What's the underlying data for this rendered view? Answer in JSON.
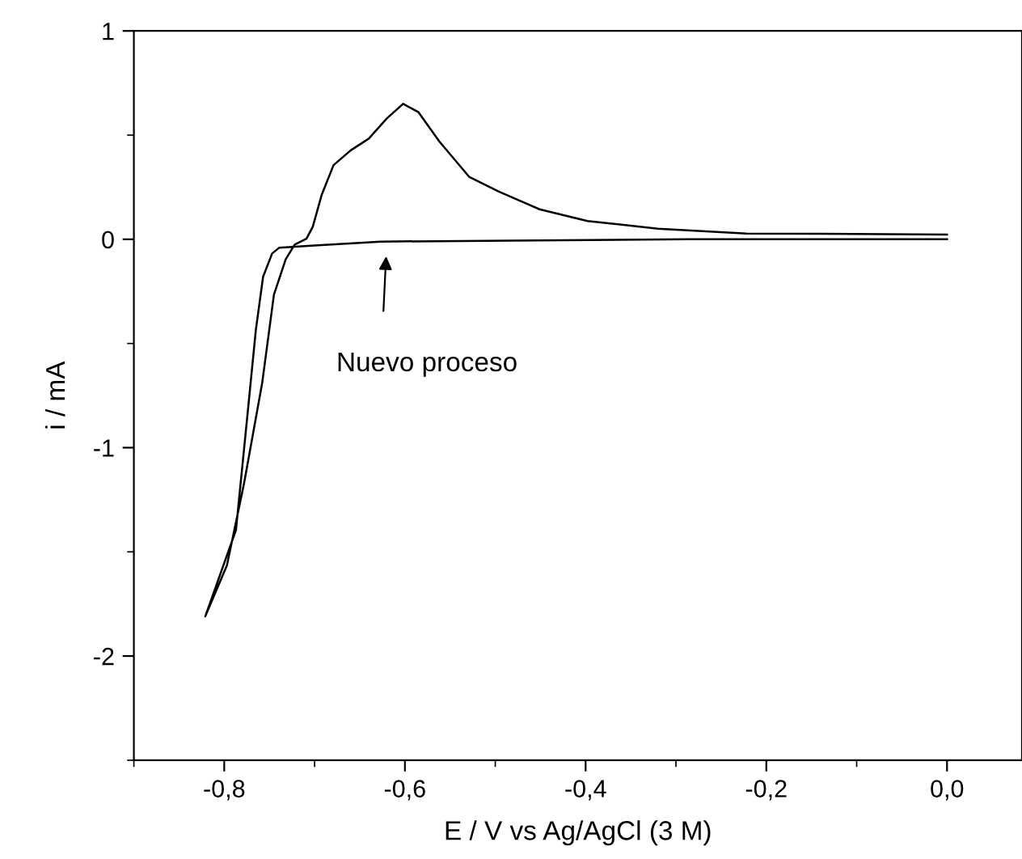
{
  "chart_data": {
    "type": "line",
    "xlabel": "E / V vs Ag/AgCl (3 M)",
    "ylabel": "i / mA",
    "xlim": [
      -0.9,
      0.083
    ],
    "xticks": [
      {
        "value": -0.8,
        "label": "-0,8"
      },
      {
        "value": -0.6,
        "label": "-0,6"
      },
      {
        "value": -0.4,
        "label": "-0,4"
      },
      {
        "value": -0.2,
        "label": "-0,2"
      },
      {
        "value": 0.0,
        "label": "0,0"
      }
    ],
    "ylim": [
      -2.5,
      1
    ],
    "yticks": [
      -2,
      -1,
      0,
      1
    ],
    "grid": false,
    "series": [
      {
        "color": "#000000",
        "x": [
          0.0,
          -0.287,
          -0.483,
          -0.627,
          -0.7,
          -0.739,
          -0.747,
          -0.757,
          -0.765,
          -0.774,
          -0.787,
          -0.821,
          -0.797,
          -0.778,
          -0.758,
          -0.745,
          -0.732,
          -0.722,
          -0.709,
          -0.702,
          -0.692,
          -0.679,
          -0.66,
          -0.64,
          -0.62,
          -0.602,
          -0.585,
          -0.562,
          -0.529,
          -0.496,
          -0.451,
          -0.398,
          -0.32,
          -0.222,
          0.0
        ],
        "values": [
          0.0,
          0.0,
          -0.006,
          -0.011,
          -0.03,
          -0.04,
          -0.068,
          -0.18,
          -0.435,
          -0.83,
          -1.395,
          -1.81,
          -1.565,
          -1.17,
          -0.69,
          -0.266,
          -0.096,
          -0.025,
          0.003,
          0.06,
          0.215,
          0.356,
          0.427,
          0.483,
          0.58,
          0.65,
          0.61,
          0.47,
          0.3,
          0.229,
          0.144,
          0.088,
          0.051,
          0.028,
          0.023
        ]
      }
    ],
    "annotations": [
      "Nuevo proceso"
    ]
  }
}
